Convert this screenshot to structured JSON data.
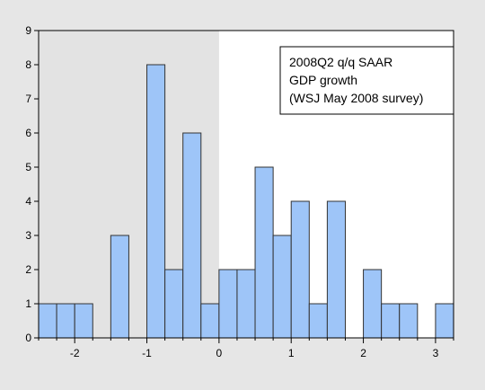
{
  "chart_data": {
    "type": "bar",
    "title": "",
    "xlabel": "",
    "ylabel": "",
    "legend_lines": [
      "2008Q2 q/q SAAR",
      "GDP growth",
      "(WSJ May 2008 survey)"
    ],
    "legend_placement": "top-right",
    "xlim": [
      -2.5,
      3.25
    ],
    "ylim": [
      0,
      9
    ],
    "bin_width": 0.25,
    "x_ticks": [
      "-2",
      "-1",
      "0",
      "1",
      "2",
      "3"
    ],
    "x_tick_values": [
      -2,
      -1,
      0,
      1,
      2,
      3
    ],
    "y_ticks": [
      "0",
      "1",
      "2",
      "3",
      "4",
      "5",
      "6",
      "7",
      "8",
      "9"
    ],
    "y_tick_values": [
      0,
      1,
      2,
      3,
      4,
      5,
      6,
      7,
      8,
      9
    ],
    "shaded_region": [
      -2.5,
      0
    ],
    "grid": false,
    "bins": [
      {
        "x0": -2.5,
        "x1": -2.25,
        "count": 1
      },
      {
        "x0": -2.25,
        "x1": -2.0,
        "count": 1
      },
      {
        "x0": -2.0,
        "x1": -1.75,
        "count": 1
      },
      {
        "x0": -1.5,
        "x1": -1.25,
        "count": 3
      },
      {
        "x0": -1.0,
        "x1": -0.75,
        "count": 8
      },
      {
        "x0": -0.75,
        "x1": -0.5,
        "count": 2
      },
      {
        "x0": -0.5,
        "x1": -0.25,
        "count": 6
      },
      {
        "x0": -0.25,
        "x1": 0.0,
        "count": 1
      },
      {
        "x0": 0.0,
        "x1": 0.25,
        "count": 2
      },
      {
        "x0": 0.25,
        "x1": 0.5,
        "count": 2
      },
      {
        "x0": 0.5,
        "x1": 0.75,
        "count": 5
      },
      {
        "x0": 0.75,
        "x1": 1.0,
        "count": 3
      },
      {
        "x0": 1.0,
        "x1": 1.25,
        "count": 4
      },
      {
        "x0": 1.25,
        "x1": 1.5,
        "count": 1
      },
      {
        "x0": 1.5,
        "x1": 1.75,
        "count": 4
      },
      {
        "x0": 2.0,
        "x1": 2.25,
        "count": 2
      },
      {
        "x0": 2.25,
        "x1": 2.5,
        "count": 1
      },
      {
        "x0": 2.5,
        "x1": 2.75,
        "count": 1
      },
      {
        "x0": 3.0,
        "x1": 3.25,
        "count": 1
      }
    ],
    "colors": {
      "bar_fill": "#9ec5f8",
      "bar_stroke": "#333333",
      "shade": "#e3e3e3",
      "plot_bg": "#ffffff",
      "page_bg": "#e6e6e6"
    }
  }
}
